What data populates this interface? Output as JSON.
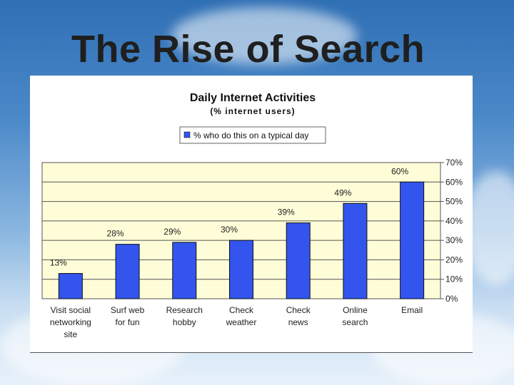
{
  "slide": {
    "title": "The Rise of Search"
  },
  "colors": {
    "bar": "#3355ee",
    "plot_bg": "#fffdd8",
    "grid": "#555555"
  },
  "chart_data": {
    "type": "bar",
    "title": "Daily Internet Activities",
    "subtitle": "(% internet users)",
    "legend": [
      "% who do this on a typical day"
    ],
    "series": [
      {
        "name": "% who do this on a typical day",
        "values": [
          13,
          28,
          29,
          30,
          39,
          49,
          60
        ],
        "labels": [
          "13%",
          "28%",
          "29%",
          "30%",
          "39%",
          "49%",
          "60%"
        ]
      }
    ],
    "categories": [
      [
        "Visit social",
        "networking",
        "site"
      ],
      [
        "Surf web",
        "for fun"
      ],
      [
        "Research",
        "hobby"
      ],
      [
        "Check",
        "weather"
      ],
      [
        "Check",
        "news"
      ],
      [
        "Online",
        "search"
      ],
      [
        "Email"
      ]
    ],
    "y_ticks": [
      "0%",
      "10%",
      "20%",
      "30%",
      "40%",
      "50%",
      "60%",
      "70%"
    ],
    "ylim": [
      0,
      70
    ],
    "ylabel": "",
    "xlabel": "",
    "y_axis_side": "right",
    "legend_position": "top-center",
    "grid": true
  }
}
